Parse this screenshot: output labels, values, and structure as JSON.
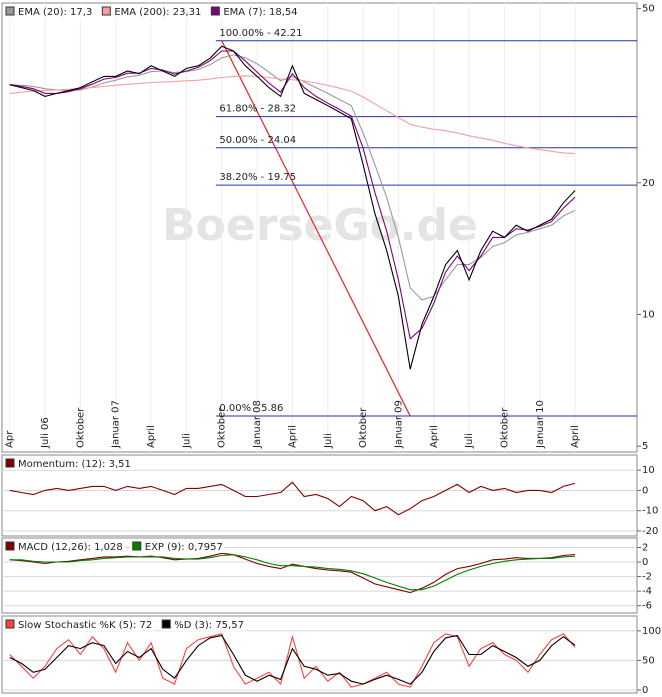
{
  "chart_data": [
    {
      "type": "line",
      "log": true,
      "watermark": "BoerseGo.de",
      "categories": [
        "Apr",
        null,
        null,
        "Juli 06",
        null,
        null,
        "Oktober",
        null,
        null,
        "Januar 07",
        null,
        null,
        "April",
        null,
        null,
        "Juli",
        null,
        null,
        "Oktober",
        null,
        null,
        "Januar 08",
        null,
        null,
        "April",
        null,
        null,
        "Juli",
        null,
        null,
        "Oktober",
        null,
        null,
        "Januar 09",
        null,
        null,
        "April",
        null,
        null,
        "Juli",
        null,
        null,
        "Oktober",
        null,
        null,
        "Januar 10",
        null,
        null,
        "April"
      ],
      "ylim": [
        4.85,
        51.5
      ],
      "yticks": [
        5,
        10,
        20,
        50
      ],
      "levels": [
        {
          "value": 42.21,
          "label": "100.00% - 42.21"
        },
        {
          "value": 28.32,
          "label": "61.80% - 28.32"
        },
        {
          "value": 24.04,
          "label": "50.00% - 24.04"
        },
        {
          "value": 19.75,
          "label": "38.20% - 19.75"
        },
        {
          "value": 5.86,
          "label": "0.00% - 5.86"
        }
      ],
      "level_color": "#2233aa",
      "trend_color": "#ee2222",
      "series": [
        {
          "name": "EMA (20): 17,3",
          "color": "#9a9a9a",
          "values": [
            33.5,
            33.4,
            33.2,
            32.8,
            32.6,
            32.5,
            32.6,
            33.1,
            33.8,
            34.3,
            34.9,
            35.2,
            35.9,
            36,
            35.7,
            35.9,
            36.3,
            37.2,
            38.6,
            39.2,
            38.6,
            37.4,
            35.8,
            34.2,
            35,
            34,
            33,
            32,
            31,
            30,
            26,
            22,
            18.5,
            15,
            11.5,
            10.8,
            11,
            12,
            13,
            13,
            13.5,
            14.3,
            14.6,
            15.2,
            15.4,
            15.7,
            16,
            16.8,
            17.3
          ]
        },
        {
          "name": "EMA (200): 23,31",
          "color": "#f4a0a0",
          "values": [
            32,
            32.2,
            32.4,
            32.5,
            32.6,
            32.7,
            32.8,
            33,
            33.2,
            33.4,
            33.6,
            33.7,
            33.9,
            34,
            34.1,
            34.2,
            34.3,
            34.5,
            34.8,
            35,
            35.1,
            35,
            34.8,
            34.5,
            34.4,
            34.2,
            33.8,
            33.4,
            32.9,
            32.4,
            31.4,
            30.3,
            29.2,
            28.2,
            27.2,
            26.8,
            26.5,
            26.3,
            26,
            25.6,
            25.3,
            25,
            24.6,
            24.3,
            24,
            23.8,
            23.6,
            23.4,
            23.31
          ]
        },
        {
          "name": "EMA (7): 18,54",
          "color": "#800080",
          "values": [
            33.5,
            33.2,
            32.8,
            32,
            32,
            32.3,
            32.8,
            33.6,
            34.5,
            34.8,
            35.6,
            35.6,
            36.5,
            36.2,
            35.4,
            36,
            36.7,
            38,
            40,
            40,
            38,
            35.8,
            33.8,
            32.2,
            35.5,
            33,
            31.5,
            30.4,
            29.4,
            28.4,
            24,
            19,
            15.5,
            12,
            8.8,
            9.3,
            10.6,
            12.5,
            13.6,
            12.6,
            13.6,
            15,
            15,
            15.7,
            15.6,
            15.9,
            16.3,
            17.5,
            18.54
          ]
        },
        {
          "color": "#000000",
          "values": [
            33.5,
            33,
            32.5,
            31.5,
            32,
            32.5,
            33,
            34,
            35,
            35,
            36,
            35.5,
            37,
            36,
            35,
            36.5,
            37,
            38.5,
            41,
            40,
            37,
            35,
            33,
            31.5,
            37,
            32,
            31,
            30,
            29,
            28,
            22,
            17,
            14,
            11,
            7.5,
            9.5,
            11,
            13,
            14,
            12,
            14,
            15.5,
            15,
            16,
            15.5,
            16,
            16.5,
            18,
            19.2
          ]
        }
      ]
    },
    {
      "type": "line",
      "ylim": [
        -22.5,
        17.5
      ],
      "yticks": [
        -20,
        -10,
        0,
        10
      ],
      "grid": true,
      "series": [
        {
          "name": "Momentum: (12): 3,51",
          "color": "#800000",
          "values": [
            0,
            -1,
            -2,
            0,
            1,
            0,
            1,
            2,
            2,
            0,
            2,
            1,
            2,
            0,
            -2,
            1,
            1,
            2,
            3,
            0,
            -3,
            -3,
            -2,
            -1,
            4,
            -3,
            -2,
            -4,
            -8,
            -3,
            -5,
            -10,
            -8,
            -12,
            -9,
            -5,
            -3,
            0,
            3,
            -1,
            2,
            0,
            1,
            -1,
            0,
            0,
            -1,
            2,
            3.5
          ]
        }
      ]
    },
    {
      "type": "line",
      "ylim": [
        -7,
        3.3
      ],
      "yticks": [
        2,
        0,
        -2,
        -4,
        -6
      ],
      "grid": true,
      "series": [
        {
          "name": "MACD (12,26): 1,028",
          "color": "#800000",
          "values": [
            0.3,
            0.2,
            0,
            -0.2,
            0,
            0.1,
            0.3,
            0.5,
            0.7,
            0.7,
            0.8,
            0.7,
            0.8,
            0.6,
            0.3,
            0.4,
            0.5,
            0.8,
            1.2,
            1,
            0.4,
            -0.2,
            -0.6,
            -0.9,
            -0.3,
            -0.6,
            -0.9,
            -1.1,
            -1.2,
            -1.4,
            -2.2,
            -3,
            -3.4,
            -3.8,
            -4.2,
            -3.6,
            -2.8,
            -1.7,
            -0.9,
            -0.6,
            -0.2,
            0.3,
            0.4,
            0.6,
            0.5,
            0.5,
            0.6,
            0.9,
            1.028
          ]
        },
        {
          "name": "EXP (9): 0,7957",
          "color": "#008000",
          "values": [
            0.3,
            0.3,
            0.1,
            0,
            0,
            0,
            0.2,
            0.3,
            0.5,
            0.6,
            0.7,
            0.7,
            0.7,
            0.7,
            0.5,
            0.4,
            0.4,
            0.6,
            0.9,
            1,
            0.7,
            0.3,
            -0.2,
            -0.5,
            -0.5,
            -0.6,
            -0.7,
            -0.9,
            -1,
            -1.2,
            -1.6,
            -2.2,
            -2.8,
            -3.3,
            -3.8,
            -3.8,
            -3.3,
            -2.5,
            -1.7,
            -1.1,
            -0.6,
            -0.2,
            0.1,
            0.3,
            0.4,
            0.5,
            0.5,
            0.7,
            0.7957
          ]
        }
      ]
    },
    {
      "type": "line",
      "ylim": [
        -5,
        125
      ],
      "yticks": [
        0,
        50,
        100
      ],
      "grid": true,
      "series": [
        {
          "name": "Slow Stochastic %K (5): 72",
          "color": "#ff4040",
          "values": [
            60,
            40,
            20,
            40,
            70,
            85,
            60,
            90,
            70,
            30,
            80,
            50,
            80,
            20,
            10,
            70,
            85,
            90,
            95,
            40,
            10,
            20,
            30,
            10,
            90,
            20,
            40,
            15,
            30,
            5,
            10,
            20,
            30,
            10,
            5,
            40,
            80,
            95,
            90,
            40,
            70,
            80,
            60,
            50,
            30,
            60,
            85,
            95,
            72
          ]
        },
        {
          "name": "%D (3): 75,57",
          "color": "#000000",
          "values": [
            55,
            45,
            30,
            35,
            55,
            75,
            70,
            80,
            75,
            45,
            65,
            55,
            70,
            35,
            20,
            50,
            75,
            88,
            92,
            60,
            25,
            15,
            25,
            18,
            70,
            40,
            35,
            25,
            28,
            15,
            10,
            18,
            25,
            18,
            10,
            30,
            65,
            88,
            92,
            60,
            60,
            75,
            65,
            55,
            40,
            50,
            75,
            90,
            75.57
          ]
        }
      ]
    }
  ]
}
